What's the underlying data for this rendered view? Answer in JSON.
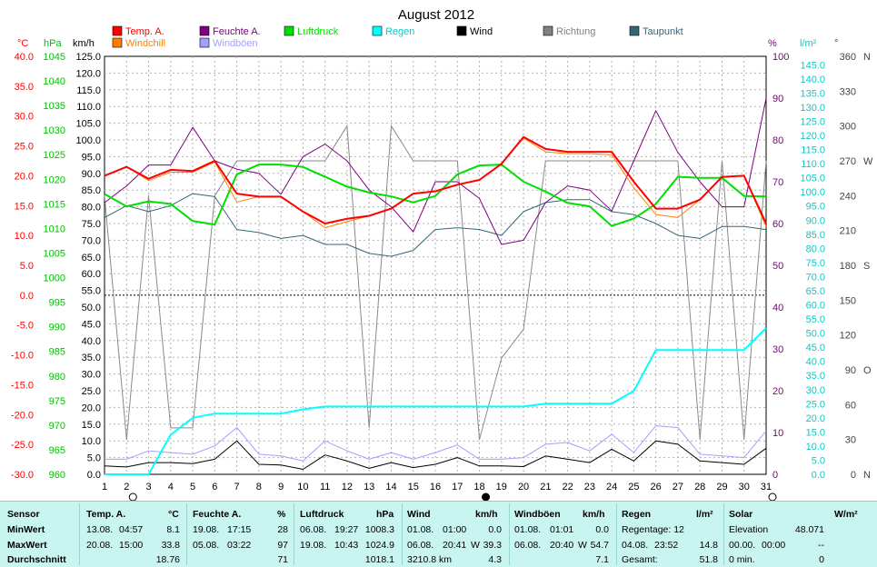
{
  "chart_data": {
    "type": "line",
    "title": "August 2012",
    "days": [
      1,
      2,
      3,
      4,
      5,
      6,
      7,
      8,
      9,
      10,
      11,
      12,
      13,
      14,
      15,
      16,
      17,
      18,
      19,
      20,
      21,
      22,
      23,
      24,
      25,
      26,
      27,
      28,
      29,
      30,
      31
    ],
    "axes": {
      "celsius": {
        "unit": "°C",
        "min": -30,
        "max": 40,
        "step": 5,
        "color": "#ff0000"
      },
      "hpa": {
        "unit": "hPa",
        "min": 960,
        "max": 1045,
        "step": 5,
        "color": "#00c000"
      },
      "kmh": {
        "unit": "km/h",
        "min": 0,
        "max": 125,
        "step": 5,
        "color": "#000000"
      },
      "percent": {
        "unit": "%",
        "min": 0,
        "max": 100,
        "step": 10,
        "color": "#800080"
      },
      "rain": {
        "unit": "l/m²",
        "min": 0,
        "max": 148,
        "step": 5,
        "color": "#00cccc"
      },
      "direction": {
        "unit": "°",
        "ticks": [
          {
            "v": 0,
            "t": "0"
          },
          {
            "v": 30,
            "t": "30"
          },
          {
            "v": 60,
            "t": "60"
          },
          {
            "v": 90,
            "t": "90"
          },
          {
            "v": 120,
            "t": "120"
          },
          {
            "v": 150,
            "t": "150"
          },
          {
            "v": 180,
            "t": "180"
          },
          {
            "v": 210,
            "t": "210"
          },
          {
            "v": 240,
            "t": "240"
          },
          {
            "v": 270,
            "t": "270"
          },
          {
            "v": 300,
            "t": "300"
          },
          {
            "v": 330,
            "t": "330"
          },
          {
            "v": 360,
            "t": "360"
          }
        ],
        "compass": [
          {
            "v": 0,
            "t": "N"
          },
          {
            "v": 90,
            "t": "O"
          },
          {
            "v": 180,
            "t": "S"
          },
          {
            "v": 270,
            "t": "W"
          },
          {
            "v": 360,
            "t": "N"
          }
        ]
      }
    },
    "legend": [
      {
        "name": "Temp. A.",
        "color": "#ff0000"
      },
      {
        "name": "Feuchte A.",
        "color": "#800080"
      },
      {
        "name": "Luftdruck",
        "color": "#00e000"
      },
      {
        "name": "Regen",
        "color": "#00ffff"
      },
      {
        "name": "Wind",
        "color": "#000000"
      },
      {
        "name": "Richtung",
        "color": "#808080"
      },
      {
        "name": "Taupunkt",
        "color": "#336677"
      },
      {
        "name": "Windchill",
        "color": "#ff8000"
      },
      {
        "name": "Windböen",
        "color": "#a0a0ff"
      }
    ],
    "series": {
      "temp": [
        20.0,
        21.5,
        19.5,
        21.0,
        20.8,
        22.5,
        17.0,
        16.5,
        16.5,
        14.0,
        12.0,
        12.8,
        13.3,
        14.5,
        17.0,
        17.4,
        18.5,
        19.3,
        22.0,
        26.5,
        24.5,
        24.0,
        24.0,
        24.0,
        19.0,
        14.5,
        14.5,
        16.0,
        19.8,
        20.0,
        12.0
      ],
      "windchill": [
        20.0,
        21.5,
        19.2,
        20.6,
        20.6,
        22.3,
        15.6,
        16.5,
        16.5,
        14.0,
        11.3,
        12.3,
        13.3,
        14.5,
        17.0,
        17.4,
        18.5,
        19.3,
        22.0,
        26.3,
        24.0,
        23.7,
        23.7,
        23.5,
        18.0,
        13.5,
        13.0,
        16.0,
        19.8,
        20.0,
        11.5
      ],
      "humidity": [
        65,
        69,
        74,
        74,
        83,
        75,
        73,
        72,
        67,
        76,
        79,
        75,
        68,
        64,
        58,
        70,
        70,
        66,
        55,
        56,
        65,
        69,
        68,
        63,
        75,
        87,
        77,
        70,
        64,
        64,
        90
      ],
      "pressure": [
        1017.0,
        1014.5,
        1015.5,
        1015.0,
        1011.5,
        1010.8,
        1021.0,
        1023.0,
        1023.0,
        1022.5,
        1020.5,
        1018.5,
        1017.3,
        1016.5,
        1015.3,
        1016.6,
        1021.0,
        1022.8,
        1023.0,
        1019.5,
        1017.5,
        1015.2,
        1014.5,
        1010.5,
        1012.0,
        1015.0,
        1020.5,
        1020.3,
        1020.3,
        1016.6,
        1016.5
      ],
      "dewpoint": [
        13.0,
        15.0,
        14.0,
        15.0,
        17.0,
        16.5,
        11.0,
        10.5,
        9.5,
        10.0,
        8.5,
        8.5,
        7.0,
        6.5,
        7.5,
        11.0,
        11.3,
        11.0,
        10.0,
        14.0,
        15.5,
        16.0,
        16.0,
        14.0,
        13.5,
        12.0,
        10.0,
        9.5,
        11.5,
        11.5,
        11.0
      ],
      "direction": [
        240,
        30,
        240,
        40,
        40,
        240,
        270,
        270,
        270,
        270,
        270,
        300,
        40,
        300,
        270,
        270,
        270,
        30,
        100,
        125,
        270,
        270,
        270,
        270,
        270,
        270,
        270,
        30,
        270,
        30,
        270
      ],
      "wind": [
        2.5,
        2.2,
        3.5,
        3.5,
        3.2,
        4.5,
        10.0,
        3.0,
        2.8,
        1.5,
        5.8,
        4.0,
        1.8,
        3.5,
        2.0,
        3.0,
        5.0,
        2.5,
        2.5,
        2.3,
        5.5,
        4.5,
        3.5,
        7.5,
        4.0,
        10.0,
        9.0,
        4.0,
        3.5,
        3.0,
        7.8
      ],
      "gust": [
        4.5,
        4.5,
        7.0,
        6.5,
        6.0,
        8.5,
        14.0,
        6.0,
        5.5,
        4.0,
        10.0,
        7.0,
        4.5,
        6.5,
        4.5,
        6.5,
        8.8,
        4.5,
        4.5,
        5.0,
        9.0,
        9.5,
        7.0,
        12.0,
        6.5,
        14.5,
        14.0,
        6.0,
        5.5,
        5.0,
        13.0
      ],
      "rain": [
        0,
        0,
        0,
        14.0,
        20.0,
        21.5,
        21.5,
        21.5,
        21.5,
        23.0,
        24.0,
        24.0,
        24.0,
        24.0,
        24.0,
        24.0,
        24.0,
        24.0,
        24.0,
        24.0,
        25.0,
        25.0,
        25.0,
        25.0,
        29.5,
        44.0,
        44.0,
        44.0,
        44.0,
        44.0,
        51.8
      ]
    }
  },
  "moon_markers": [
    {
      "day": 2,
      "phase": "full"
    },
    {
      "day": 18,
      "phase": "new"
    },
    {
      "day": 31,
      "phase": "full"
    }
  ],
  "header_units": {
    "celsius": "°C",
    "hpa": "hPa",
    "kmh": "km/h",
    "percent": "%",
    "rain": "l/m²",
    "deg": "°"
  },
  "stats": {
    "sensor_label": "Sensor",
    "min_label": "MinWert",
    "max_label": "MaxWert",
    "avg_label": "Durchschnitt",
    "temp": {
      "title": "Temp. A.",
      "unit": "°C",
      "min_date": "13.08.",
      "min_time": "04:57",
      "min_val": "8.1",
      "max_date": "20.08.",
      "max_time": "15:00",
      "max_val": "33.8",
      "avg": "18.76"
    },
    "hum": {
      "title": "Feuchte A.",
      "unit": "%",
      "min_date": "19.08.",
      "min_time": "17:15",
      "min_val": "28",
      "max_date": "05.08.",
      "max_time": "03:22",
      "max_val": "97",
      "avg": "71"
    },
    "press": {
      "title": "Luftdruck",
      "unit": "hPa",
      "min_date": "06.08.",
      "min_time": "19:27",
      "min_val": "1008.3",
      "max_date": "19.08.",
      "max_time": "10:43",
      "max_val": "1024.9",
      "avg": "1018.1"
    },
    "wind": {
      "title": "Wind",
      "unit": "km/h",
      "min_date": "01.08.",
      "min_time": "01:00",
      "min_val": "0.0",
      "max_date": "06.08.",
      "max_time": "20:41",
      "max_dir": "W",
      "max_val": "39.3",
      "avg_km": "3210.8 km",
      "avg": "4.3"
    },
    "gust": {
      "title": "Windböen",
      "unit": "km/h",
      "min_date": "01.08.",
      "min_time": "01:01",
      "min_val": "0.0",
      "max_date": "06.08.",
      "max_time": "20:40",
      "max_dir": "W",
      "max_val": "54.7",
      "avg": "7.1"
    },
    "rain": {
      "title": "Regen",
      "unit": "l/m²",
      "days_label": "Regentage: 12",
      "max_date": "04.08.",
      "max_time": "23:52",
      "max_val": "14.8",
      "total_label": "Gesamt:",
      "total": "51.8"
    },
    "solar": {
      "title": "Solar",
      "unit": "W/m²",
      "elev_label": "Elevation",
      "elev": "48.071",
      "max_date": "00.00.",
      "max_time": "00:00",
      "max_val": "--",
      "min_label": "0 min.",
      "min_val": "0"
    }
  }
}
